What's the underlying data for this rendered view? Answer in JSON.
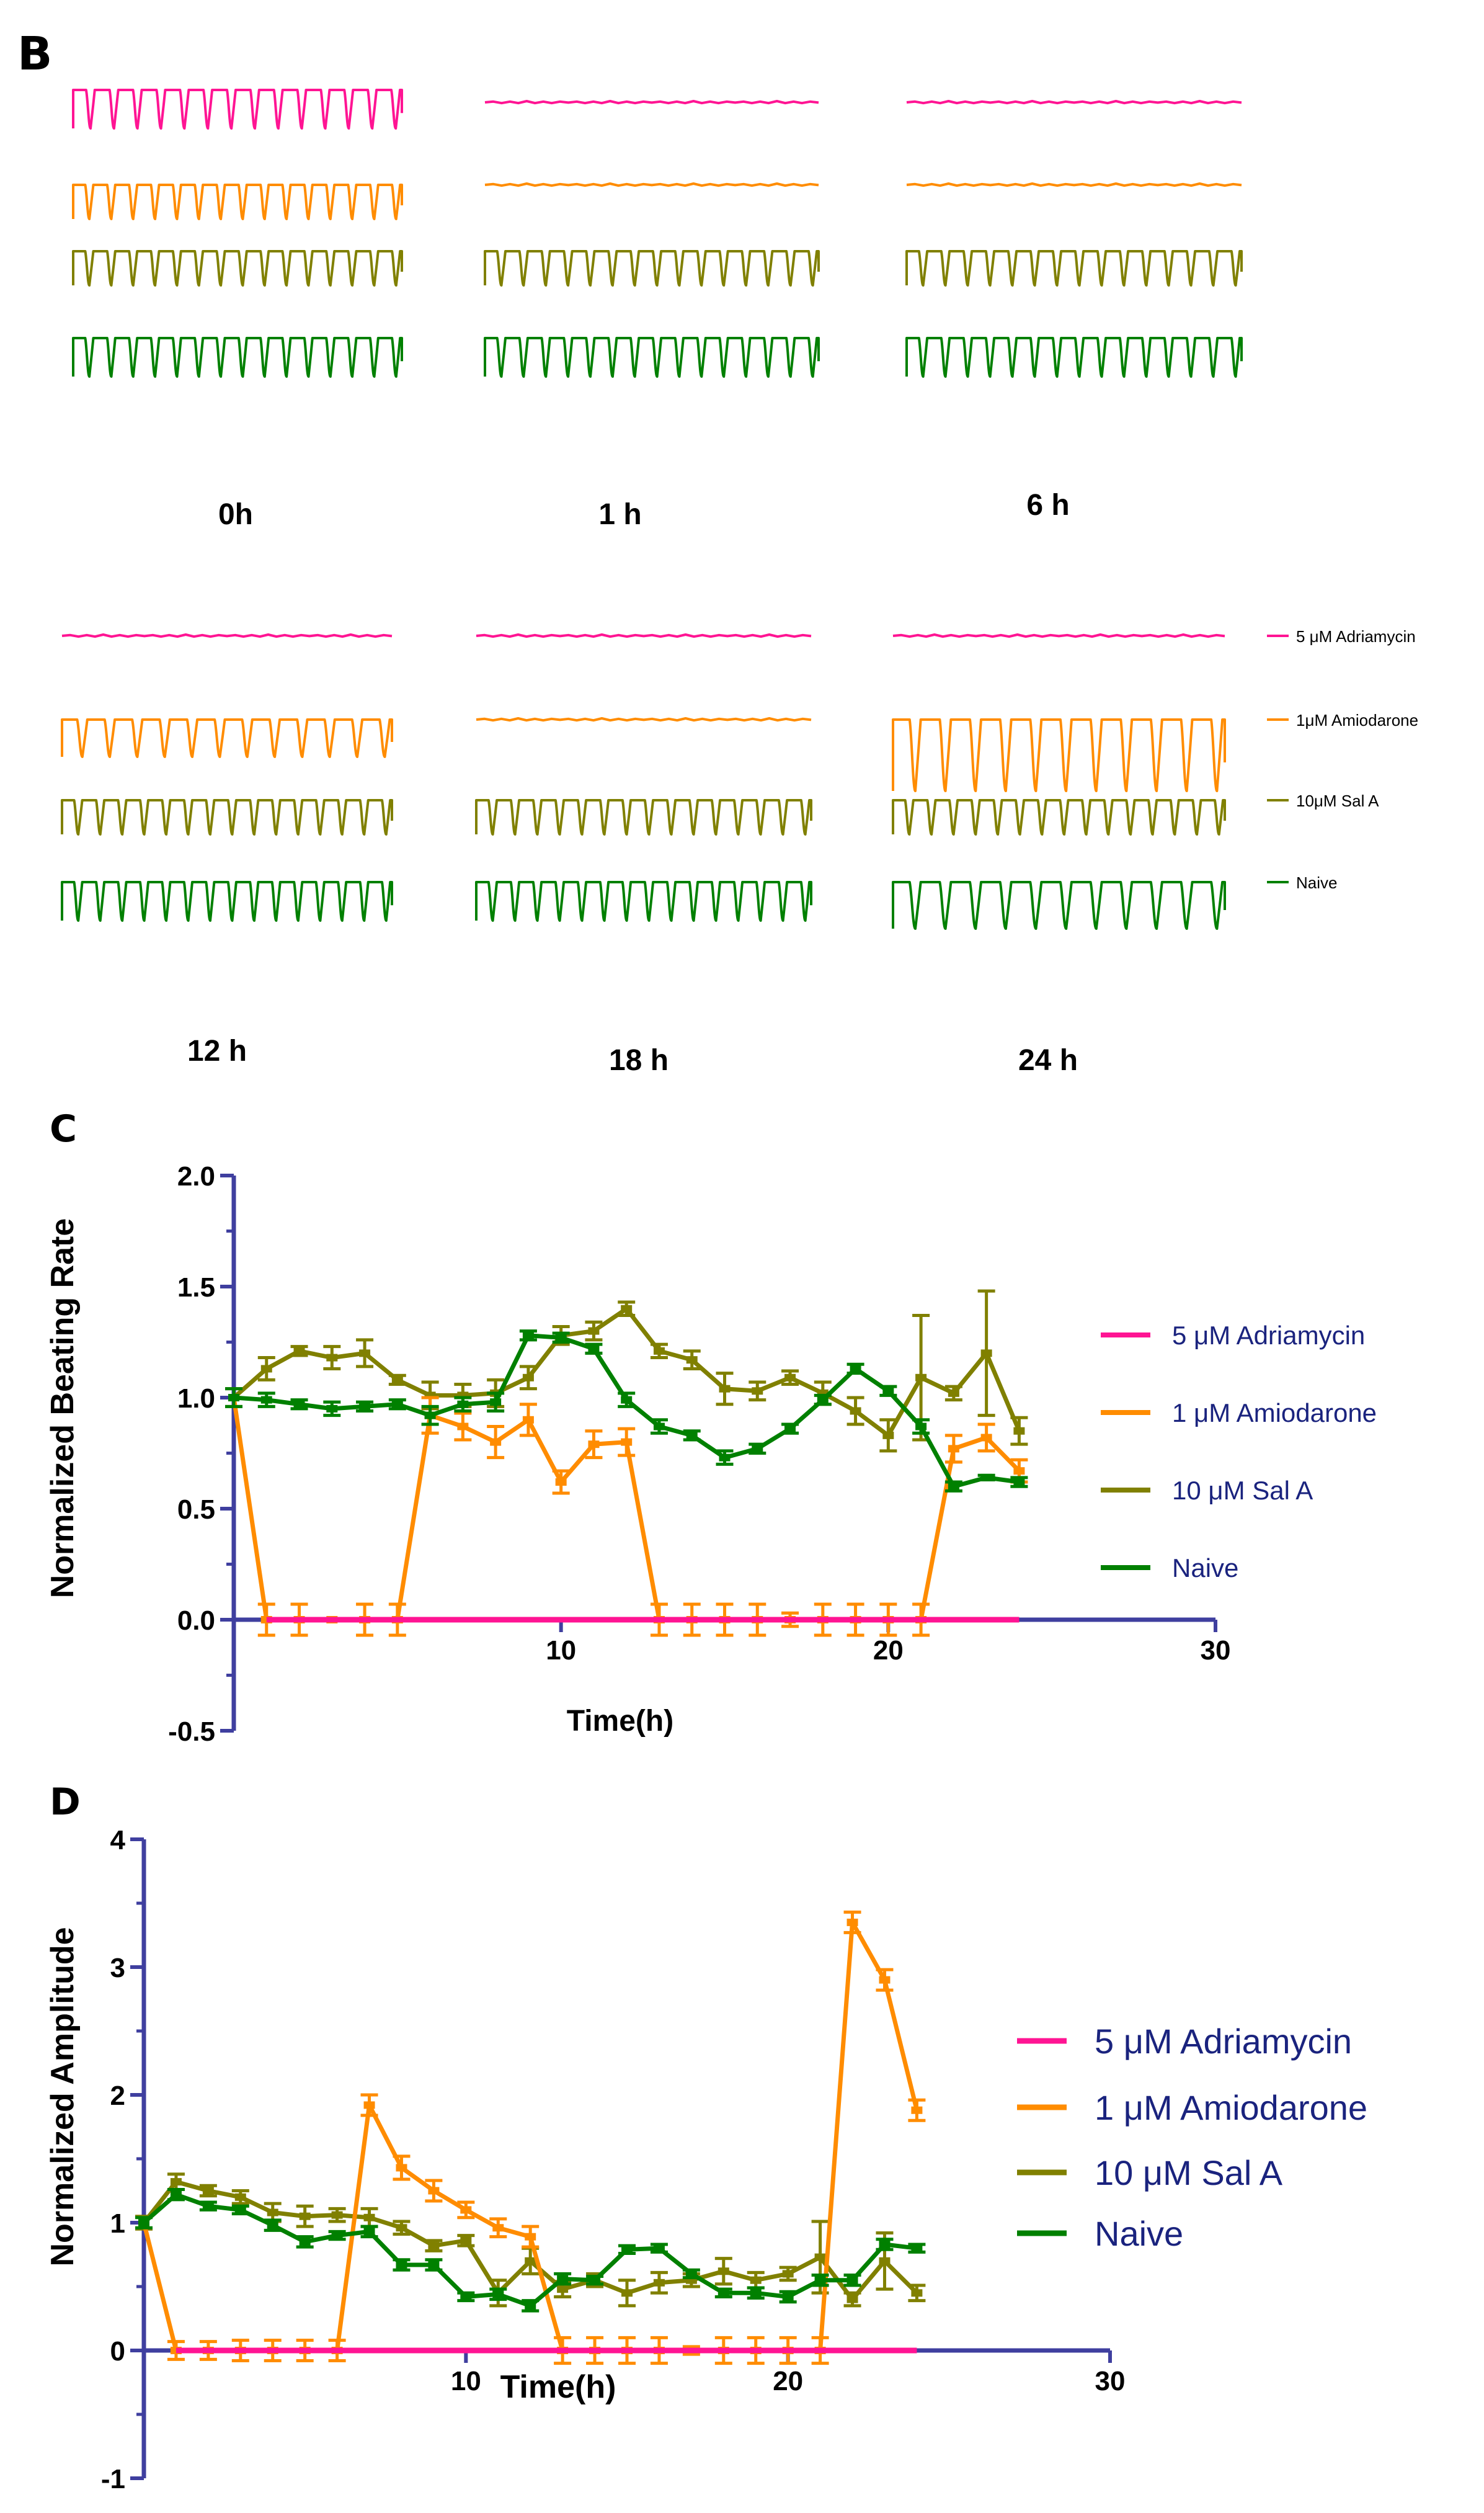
{
  "colors": {
    "adriamycin": "#ff1493",
    "amiodarone": "#ff8c00",
    "sal_a": "#808000",
    "naive": "#008000",
    "axis": "#3f3f9f"
  },
  "panel_b": {
    "letter": "B",
    "timepoints": [
      "0h",
      "1 h",
      "6 h",
      "12 h",
      "18 h",
      "24 h"
    ],
    "legend": [
      "5 μM Adriamycin",
      "1μM Amiodarone",
      "10μM Sal A",
      "Naive"
    ],
    "traces": [
      {
        "time": "0h",
        "adriamycin": "beating",
        "amiodarone": "beating",
        "sal_a": "beating",
        "naive": "beating"
      },
      {
        "time": "1 h",
        "adriamycin": "flat",
        "amiodarone": "flat",
        "sal_a": "beating",
        "naive": "beating"
      },
      {
        "time": "6 h",
        "adriamycin": "flat",
        "amiodarone": "flat",
        "sal_a": "beating",
        "naive": "beating"
      },
      {
        "time": "12 h",
        "adriamycin": "flat",
        "amiodarone": "beating",
        "sal_a": "beating",
        "naive": "beating"
      },
      {
        "time": "18 h",
        "adriamycin": "flat",
        "amiodarone": "flat",
        "sal_a": "beating",
        "naive": "beating"
      },
      {
        "time": "24 h",
        "adriamycin": "flat",
        "amiodarone": "beating",
        "sal_a": "beating",
        "naive": "beating"
      }
    ]
  },
  "chart_data": [
    {
      "panel": "C",
      "type": "line",
      "title": "",
      "xlabel": "Time(h)",
      "ylabel": "Normalized Beating Rate",
      "xlim": [
        0,
        30
      ],
      "ylim": [
        -0.5,
        2.0
      ],
      "xticks": [
        10,
        20,
        30
      ],
      "yticks": [
        -0.5,
        0.0,
        0.5,
        1.0,
        1.5,
        2.0
      ],
      "ytick_labels": [
        "-0.5",
        "0.0",
        "0.5",
        "1.0",
        "1.5",
        "2.0"
      ],
      "legend": [
        "5 μM Adriamycin",
        "1 μM Amiodarone",
        "10 μM Sal A",
        "Naive"
      ],
      "x": [
        0,
        1,
        2,
        3,
        4,
        5,
        6,
        7,
        8,
        9,
        10,
        11,
        12,
        13,
        14,
        15,
        16,
        17,
        18,
        19,
        20,
        21,
        22,
        23,
        24
      ],
      "series": [
        {
          "name": "5 μM Adriamycin",
          "key": "adriamycin",
          "values": [
            null,
            0,
            0,
            0,
            0,
            0,
            0,
            0,
            0,
            0,
            0,
            0,
            0,
            0,
            0,
            0,
            0,
            0,
            0,
            0,
            0,
            0,
            0,
            0,
            0
          ],
          "errors": []
        },
        {
          "name": "1 μM Amiodarone",
          "key": "amiodarone",
          "values": [
            1.0,
            0,
            0,
            0,
            0,
            0,
            0.92,
            0.87,
            0.8,
            0.9,
            0.62,
            0.79,
            0.8,
            0,
            0,
            0,
            0,
            0,
            0,
            0,
            0,
            0,
            0.77,
            0.82,
            0.67
          ],
          "errors": [
            0,
            0.07,
            0.07,
            0,
            0.07,
            0.07,
            0.08,
            0.06,
            0.07,
            0.07,
            0.05,
            0.06,
            0.06,
            0.07,
            0.07,
            0.07,
            0.07,
            0.03,
            0.07,
            0.07,
            0.07,
            0.07,
            0.06,
            0.06,
            0.05
          ]
        },
        {
          "name": "10 μM Sal A",
          "key": "sal_a",
          "values": [
            1.0,
            1.13,
            1.21,
            1.18,
            1.2,
            1.08,
            1.01,
            1.01,
            1.02,
            1.09,
            1.28,
            1.3,
            1.4,
            1.21,
            1.17,
            1.04,
            1.03,
            1.09,
            1.02,
            0.94,
            0.83,
            1.09,
            1.02,
            1.2,
            0.85
          ],
          "errors": [
            0.04,
            0.05,
            0.02,
            0.05,
            0.06,
            0.02,
            0.06,
            0.05,
            0.06,
            0.05,
            0.04,
            0.04,
            0.03,
            0.03,
            0.04,
            0.07,
            0.04,
            0.03,
            0.05,
            0.06,
            0.07,
            0.28,
            0.03,
            0.28,
            0.06
          ]
        },
        {
          "name": "Naive",
          "key": "naive",
          "values": [
            1.0,
            0.99,
            0.97,
            0.95,
            0.96,
            0.97,
            0.92,
            0.97,
            0.98,
            1.28,
            1.27,
            1.22,
            0.99,
            0.87,
            0.83,
            0.73,
            0.77,
            0.86,
            0.99,
            1.13,
            1.03,
            0.87,
            0.6,
            0.64,
            0.62
          ],
          "errors": [
            0.04,
            0.03,
            0.02,
            0.03,
            0.02,
            0.02,
            0.04,
            0.03,
            0.04,
            0.02,
            0.02,
            0.02,
            0.03,
            0.03,
            0.02,
            0.03,
            0.02,
            0.02,
            0.02,
            0.02,
            0.02,
            0.03,
            0.02,
            0.01,
            0.02
          ]
        }
      ]
    },
    {
      "panel": "D",
      "type": "line",
      "title": "",
      "xlabel": "Time(h)",
      "ylabel": "Normalized Amplitude",
      "xlim": [
        0,
        30
      ],
      "ylim": [
        -1,
        4
      ],
      "xticks": [
        10,
        20,
        30
      ],
      "yticks": [
        -1,
        0,
        1,
        2,
        3,
        4
      ],
      "ytick_labels": [
        "-1",
        "0",
        "1",
        "2",
        "3",
        "4"
      ],
      "legend": [
        "5 μM Adriamycin",
        "1 μM Amiodarone",
        "10 μM Sal A",
        "Naive"
      ],
      "x": [
        0,
        1,
        2,
        3,
        4,
        5,
        6,
        7,
        8,
        9,
        10,
        11,
        12,
        13,
        14,
        15,
        16,
        17,
        18,
        19,
        20,
        21,
        22,
        23,
        24
      ],
      "series": [
        {
          "name": "5 μM Adriamycin",
          "key": "adriamycin",
          "values": [
            null,
            0,
            0,
            0,
            0,
            0,
            0,
            0,
            0,
            0,
            0,
            0,
            0,
            0,
            0,
            0,
            0,
            0,
            0,
            0,
            0,
            0,
            0,
            0,
            0
          ],
          "errors": []
        },
        {
          "name": "1 μM Amiodarone",
          "key": "amiodarone",
          "values": [
            1.0,
            0,
            0,
            0,
            0,
            0,
            0,
            1.92,
            1.43,
            1.25,
            1.1,
            0.96,
            0.89,
            0,
            0,
            0,
            0,
            0,
            0,
            0,
            0,
            0,
            3.35,
            2.9,
            1.88
          ],
          "errors": [
            0,
            0.07,
            0.07,
            0.08,
            0.08,
            0.08,
            0.08,
            0.08,
            0.09,
            0.08,
            0.06,
            0.07,
            0.08,
            0.1,
            0.1,
            0.1,
            0.1,
            0.03,
            0.1,
            0.1,
            0.1,
            0.1,
            0.08,
            0.08,
            0.08
          ]
        },
        {
          "name": "10 μM Sal A",
          "key": "sal_a",
          "values": [
            1.0,
            1.32,
            1.25,
            1.2,
            1.08,
            1.05,
            1.06,
            1.04,
            0.96,
            0.82,
            0.86,
            0.45,
            0.7,
            0.48,
            0.55,
            0.45,
            0.53,
            0.55,
            0.62,
            0.55,
            0.6,
            0.73,
            0.4,
            0.7,
            0.45
          ],
          "errors": [
            0.05,
            0.06,
            0.04,
            0.05,
            0.07,
            0.08,
            0.05,
            0.07,
            0.05,
            0.04,
            0.04,
            0.1,
            0.1,
            0.06,
            0.05,
            0.1,
            0.08,
            0.05,
            0.1,
            0.06,
            0.05,
            0.28,
            0.05,
            0.22,
            0.06
          ]
        },
        {
          "name": "Naive",
          "key": "naive",
          "values": [
            1.0,
            1.22,
            1.13,
            1.1,
            0.98,
            0.85,
            0.9,
            0.93,
            0.67,
            0.67,
            0.42,
            0.44,
            0.35,
            0.56,
            0.55,
            0.79,
            0.8,
            0.6,
            0.45,
            0.45,
            0.42,
            0.55,
            0.55,
            0.83,
            0.8
          ],
          "errors": [
            0.04,
            0.04,
            0.03,
            0.03,
            0.04,
            0.04,
            0.03,
            0.04,
            0.04,
            0.04,
            0.03,
            0.04,
            0.04,
            0.04,
            0.03,
            0.03,
            0.03,
            0.03,
            0.03,
            0.04,
            0.04,
            0.04,
            0.04,
            0.04,
            0.03
          ]
        }
      ]
    }
  ]
}
